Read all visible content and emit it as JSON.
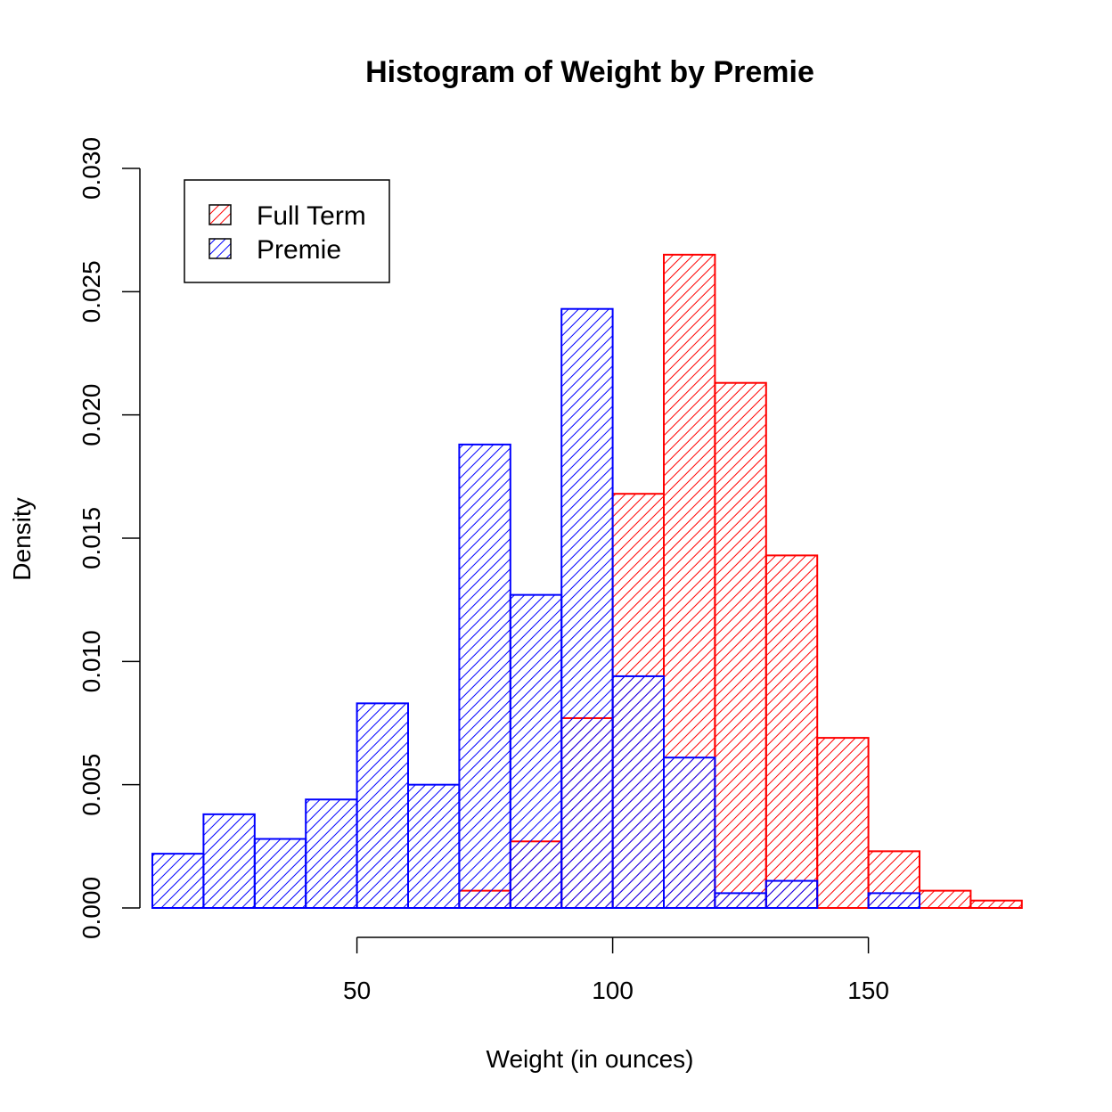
{
  "chart_data": {
    "type": "bar",
    "title": "Histogram of Weight by Premie",
    "xlabel": "Weight (in ounces)",
    "ylabel": "Density",
    "bin_width": 10,
    "xlim": [
      10,
      180
    ],
    "ylim": [
      0,
      0.03
    ],
    "x_ticks": [
      50,
      100,
      150
    ],
    "y_ticks": [
      0.0,
      0.005,
      0.01,
      0.015,
      0.02,
      0.025,
      0.03
    ],
    "y_tick_labels": [
      "0.000",
      "0.005",
      "0.010",
      "0.015",
      "0.020",
      "0.025",
      "0.030"
    ],
    "grid": false,
    "legend_position": "top-left",
    "series": [
      {
        "name": "Full Term",
        "color": "#ff0000",
        "fill": "hatched",
        "bin_starts": [
          70,
          80,
          90,
          100,
          110,
          120,
          130,
          140,
          150,
          160,
          170
        ],
        "values": [
          0.0007,
          0.0027,
          0.0077,
          0.0168,
          0.0265,
          0.0213,
          0.0143,
          0.0069,
          0.0023,
          0.0007,
          0.0003
        ]
      },
      {
        "name": "Premie",
        "color": "#0000ff",
        "fill": "hatched",
        "bin_starts": [
          10,
          20,
          30,
          40,
          50,
          60,
          70,
          80,
          90,
          100,
          110,
          120,
          130,
          140,
          150
        ],
        "values": [
          0.0022,
          0.0038,
          0.0028,
          0.0044,
          0.0083,
          0.005,
          0.0188,
          0.0127,
          0.0243,
          0.0094,
          0.0061,
          0.0006,
          0.0011,
          0.0,
          0.0006
        ]
      }
    ]
  }
}
